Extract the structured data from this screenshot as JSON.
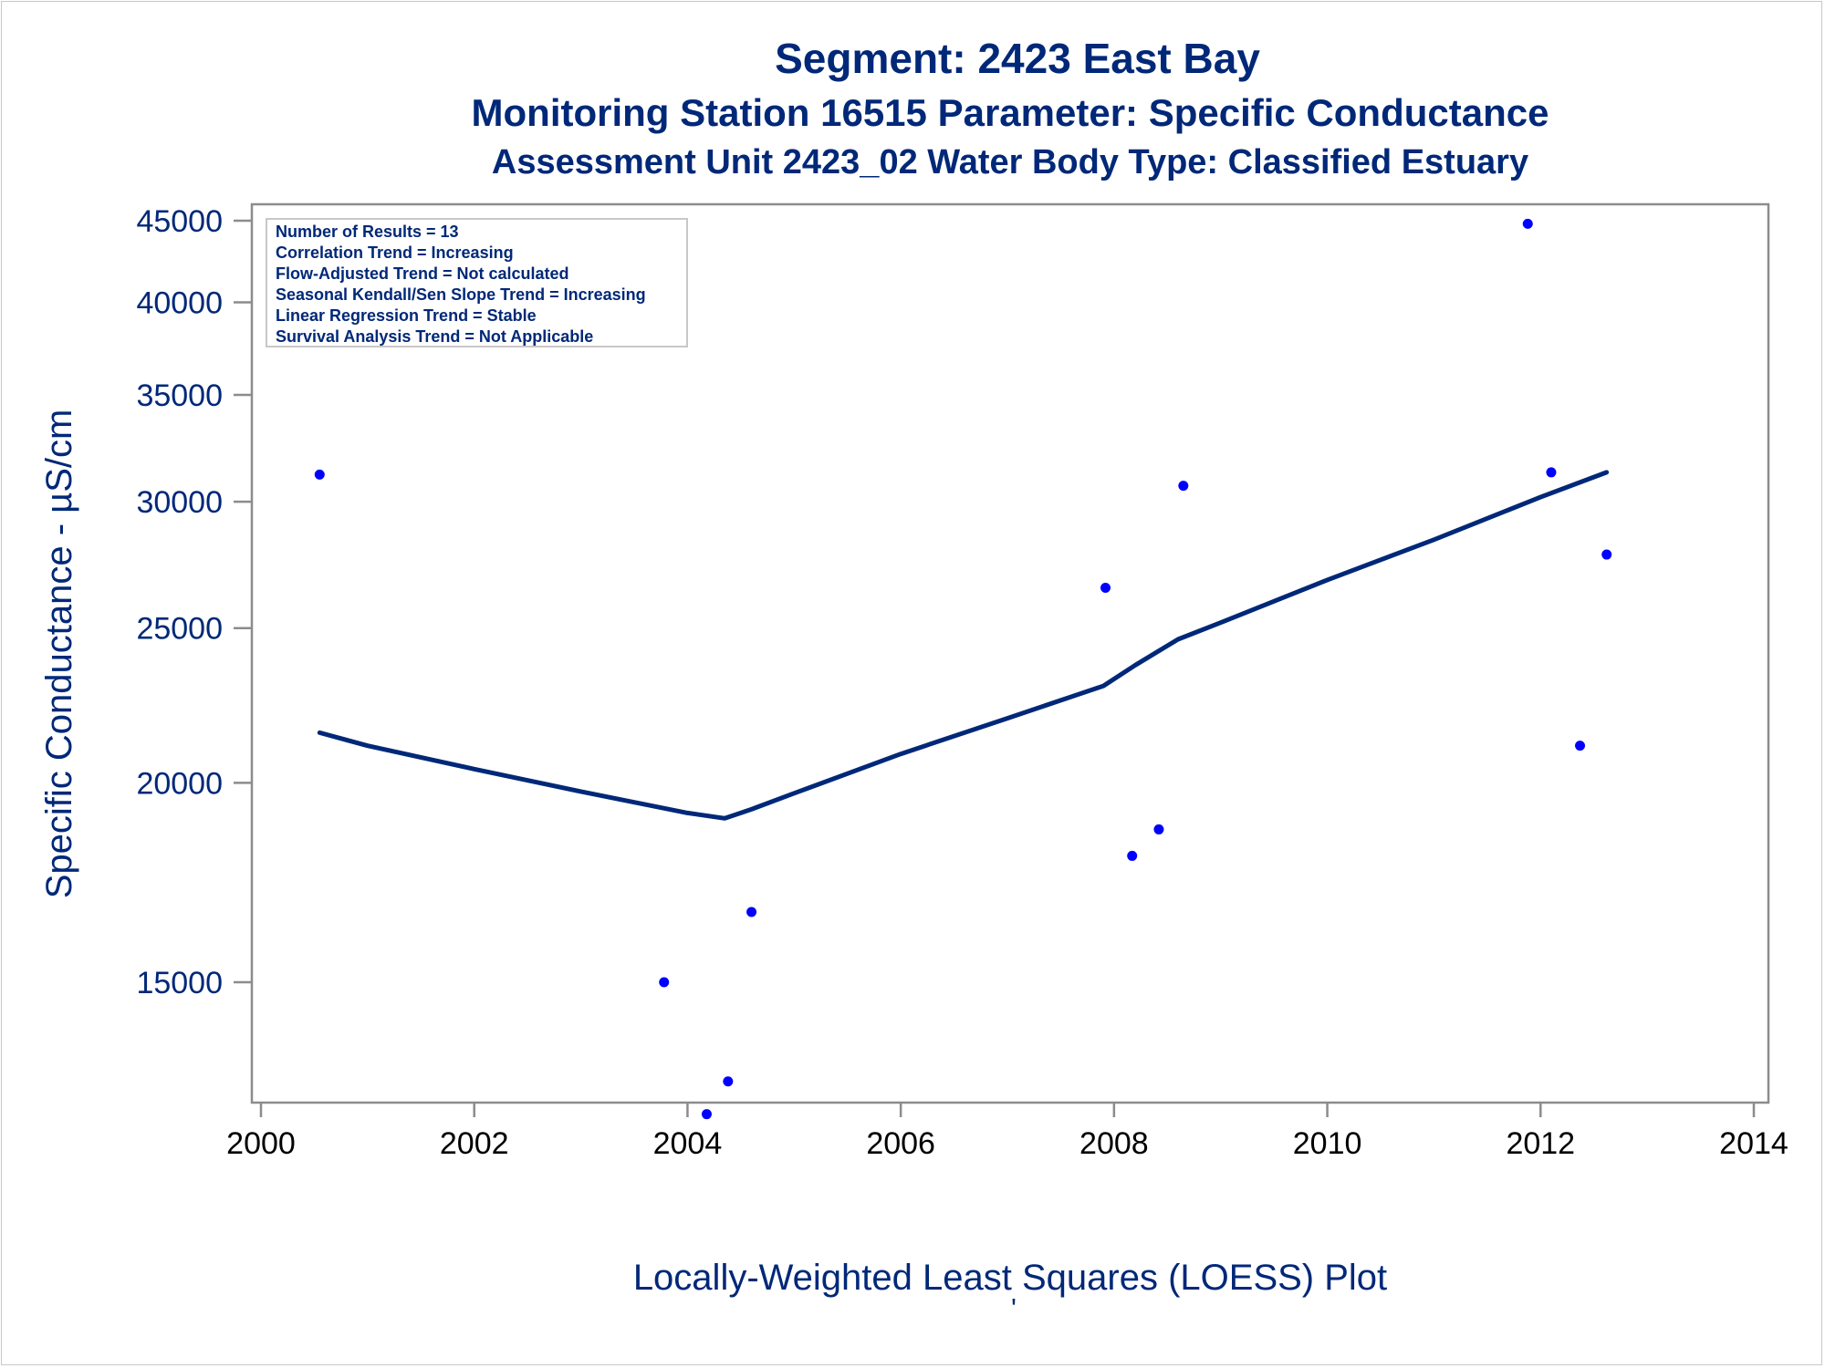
{
  "chart_data": {
    "type": "scatter",
    "title": "Segment: 2423  East Bay",
    "subtitle": "Monitoring Station 16515 Parameter: Specific Conductance",
    "subtitle2": "Assessment Unit 2423_02   Water Body Type: Classified Estuary",
    "xlabel": "Locally-Weighted Least Squares (LOESS) Plot",
    "ylabel": "Specific Conductance -  µS/cm",
    "footnote_mark": "'",
    "xlim": [
      2000,
      2014
    ],
    "ylim": [
      12300,
      45500
    ],
    "y_scale": "log",
    "x_ticks": [
      "2000",
      "2002",
      "2004",
      "2006",
      "2008",
      "2010",
      "2012",
      "2014"
    ],
    "y_ticks": [
      "15000",
      "20000",
      "25000",
      "30000",
      "35000",
      "40000",
      "45000"
    ],
    "grid": false,
    "stats_box": {
      "placement": "top-left",
      "lines": [
        "Number of Results = 13",
        "Correlation Trend = Increasing",
        "Flow-Adjusted Trend = Not calculated",
        "Seasonal Kendall/Sen Slope Trend = Increasing",
        "Linear Regression Trend = Stable",
        "Survival Analysis Trend = Not Applicable"
      ]
    },
    "points": [
      {
        "x": 2000.55,
        "y": 31200
      },
      {
        "x": 2003.78,
        "y": 15000
      },
      {
        "x": 2004.18,
        "y": 12400
      },
      {
        "x": 2004.38,
        "y": 13000
      },
      {
        "x": 2004.6,
        "y": 16600
      },
      {
        "x": 2007.92,
        "y": 26500
      },
      {
        "x": 2008.17,
        "y": 18000
      },
      {
        "x": 2008.42,
        "y": 18700
      },
      {
        "x": 2008.65,
        "y": 30700
      },
      {
        "x": 2011.88,
        "y": 44800
      },
      {
        "x": 2012.1,
        "y": 31300
      },
      {
        "x": 2012.37,
        "y": 21100
      },
      {
        "x": 2012.62,
        "y": 27800
      }
    ],
    "loess": [
      {
        "x": 2000.55,
        "y": 21500
      },
      {
        "x": 2001.0,
        "y": 21100
      },
      {
        "x": 2002.0,
        "y": 20400
      },
      {
        "x": 2003.0,
        "y": 19750
      },
      {
        "x": 2004.0,
        "y": 19150
      },
      {
        "x": 2004.35,
        "y": 19000
      },
      {
        "x": 2004.6,
        "y": 19250
      },
      {
        "x": 2005.0,
        "y": 19700
      },
      {
        "x": 2006.0,
        "y": 20850
      },
      {
        "x": 2007.0,
        "y": 21950
      },
      {
        "x": 2007.9,
        "y": 23000
      },
      {
        "x": 2008.2,
        "y": 23700
      },
      {
        "x": 2008.6,
        "y": 24600
      },
      {
        "x": 2009.0,
        "y": 25200
      },
      {
        "x": 2010.0,
        "y": 26800
      },
      {
        "x": 2011.0,
        "y": 28400
      },
      {
        "x": 2012.0,
        "y": 30200
      },
      {
        "x": 2012.62,
        "y": 31300
      }
    ],
    "colors": {
      "text": "#002878",
      "points": "#0000ff",
      "line": "#002878",
      "axis": "#8c8c8c"
    }
  }
}
